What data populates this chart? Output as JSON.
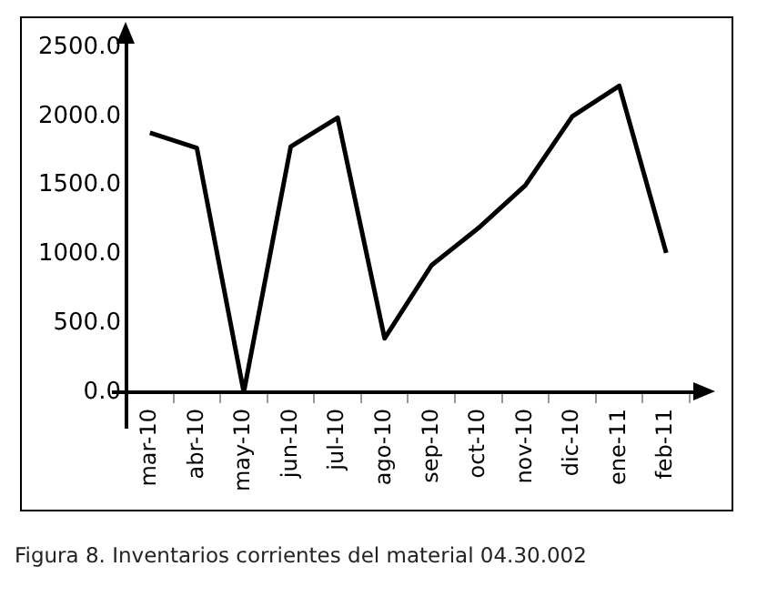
{
  "chart_data": {
    "type": "line",
    "categories": [
      "mar-10",
      "abr-10",
      "may-10",
      "jun-10",
      "jul-10",
      "ago-10",
      "sep-10",
      "oct-10",
      "nov-10",
      "dic-10",
      "ene-11",
      "feb-11"
    ],
    "series": [
      {
        "color": "#000000",
        "values": [
          1880,
          1770,
          0,
          1780,
          1990,
          390,
          920,
          1190,
          1500,
          2000,
          2220,
          1010
        ]
      }
    ],
    "ylim": [
      0,
      2500
    ],
    "yticks": [
      {
        "value": 0,
        "label": "0.0"
      },
      {
        "value": 500,
        "label": "500.0"
      },
      {
        "value": 1000,
        "label": "1000.0"
      },
      {
        "value": 1500,
        "label": "1500.0"
      },
      {
        "value": 2000,
        "label": "2000.0"
      },
      {
        "value": 2500,
        "label": "2500.0"
      }
    ],
    "grid": false,
    "legend": false,
    "marker": "none",
    "line_style": "solid",
    "annotations": [
      "Figura 8. Inventarios corrientes del material 04.30.002"
    ]
  }
}
